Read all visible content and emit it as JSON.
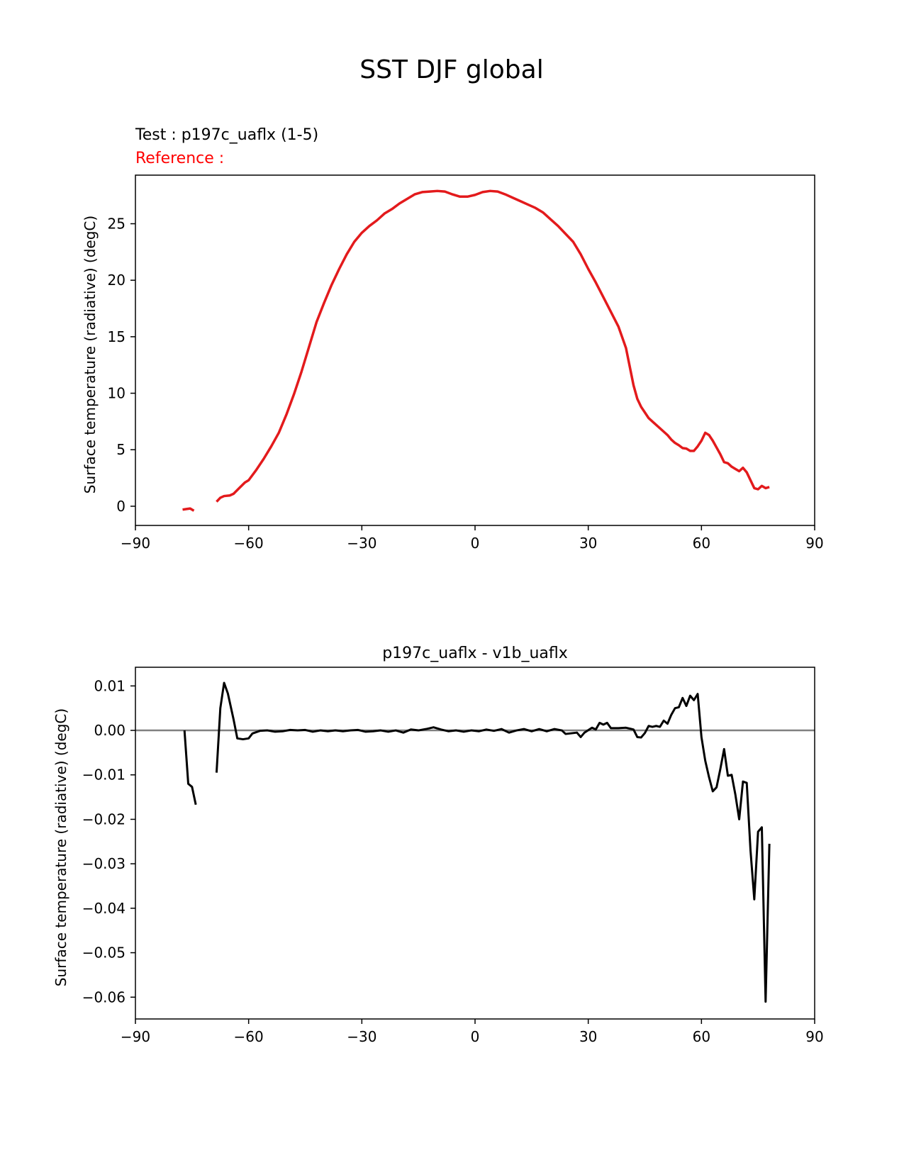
{
  "page": {
    "title": "SST DJF global"
  },
  "colors": {
    "test_line": "#e31a1c",
    "diff_line": "#000000",
    "zero_line": "#808080"
  },
  "chart_data": [
    {
      "type": "line",
      "test_label": "Test : p197c_uaflx (1-5)",
      "reference_label": "Reference :",
      "title": "",
      "xlabel": "",
      "ylabel": "Surface temperature (radiative) (degC)",
      "xlim": [
        -90,
        90
      ],
      "ylim": [
        -1.7,
        29.3
      ],
      "xticks": [
        -90,
        -60,
        -30,
        0,
        30,
        60,
        90
      ],
      "yticks": [
        0,
        5,
        10,
        15,
        20,
        25
      ],
      "series": [
        {
          "segments": [
            [
              [
                -77.5,
                -0.3
              ],
              [
                -76.5,
                -0.25
              ],
              [
                -75.5,
                -0.2
              ],
              [
                -74.5,
                -0.4
              ]
            ],
            [
              [
                -68.5,
                0.4
              ],
              [
                -67.5,
                0.75
              ],
              [
                -66.5,
                0.9
              ],
              [
                -65,
                0.95
              ],
              [
                -64,
                1.1
              ],
              [
                -62.5,
                1.6
              ],
              [
                -61,
                2.1
              ],
              [
                -60,
                2.3
              ],
              [
                -58,
                3.2
              ],
              [
                -56,
                4.2
              ],
              [
                -54,
                5.3
              ],
              [
                -52,
                6.5
              ],
              [
                -50,
                8.1
              ],
              [
                -48,
                9.9
              ],
              [
                -46,
                11.9
              ],
              [
                -44,
                14.1
              ],
              [
                -42,
                16.3
              ],
              [
                -40,
                18.0
              ],
              [
                -38,
                19.6
              ],
              [
                -36,
                21.0
              ],
              [
                -34,
                22.3
              ],
              [
                -32,
                23.4
              ],
              [
                -30,
                24.2
              ],
              [
                -28,
                24.8
              ],
              [
                -26,
                25.3
              ],
              [
                -24,
                25.9
              ],
              [
                -22,
                26.3
              ],
              [
                -20,
                26.8
              ],
              [
                -18,
                27.2
              ],
              [
                -16,
                27.6
              ],
              [
                -14,
                27.8
              ],
              [
                -12,
                27.85
              ],
              [
                -10,
                27.9
              ],
              [
                -8,
                27.85
              ],
              [
                -6,
                27.6
              ],
              [
                -4,
                27.4
              ],
              [
                -2,
                27.4
              ],
              [
                0,
                27.55
              ],
              [
                2,
                27.8
              ],
              [
                4,
                27.9
              ],
              [
                6,
                27.85
              ],
              [
                8,
                27.6
              ],
              [
                10,
                27.3
              ],
              [
                12,
                27.0
              ],
              [
                14,
                26.7
              ],
              [
                16,
                26.4
              ],
              [
                18,
                26.0
              ],
              [
                20,
                25.4
              ],
              [
                22,
                24.8
              ],
              [
                24,
                24.1
              ],
              [
                26,
                23.4
              ],
              [
                28,
                22.3
              ],
              [
                30,
                21.0
              ],
              [
                32,
                19.8
              ],
              [
                34,
                18.5
              ],
              [
                36,
                17.2
              ],
              [
                38,
                15.9
              ],
              [
                40,
                14.0
              ],
              [
                42,
                10.7
              ],
              [
                43,
                9.5
              ],
              [
                44,
                8.8
              ],
              [
                45,
                8.3
              ],
              [
                46,
                7.8
              ],
              [
                47,
                7.5
              ],
              [
                48,
                7.2
              ],
              [
                50,
                6.6
              ],
              [
                51,
                6.3
              ],
              [
                52,
                5.9
              ],
              [
                53,
                5.6
              ],
              [
                54,
                5.4
              ],
              [
                55,
                5.15
              ],
              [
                56,
                5.1
              ],
              [
                57,
                4.9
              ],
              [
                58,
                4.9
              ],
              [
                59,
                5.3
              ],
              [
                60,
                5.8
              ],
              [
                61,
                6.5
              ],
              [
                62,
                6.3
              ],
              [
                63,
                5.8
              ],
              [
                64,
                5.2
              ],
              [
                65,
                4.6
              ],
              [
                66,
                3.9
              ],
              [
                67,
                3.8
              ],
              [
                68,
                3.5
              ],
              [
                69,
                3.3
              ],
              [
                70,
                3.1
              ],
              [
                71,
                3.4
              ],
              [
                72,
                3.0
              ],
              [
                73,
                2.3
              ],
              [
                74,
                1.6
              ],
              [
                75,
                1.5
              ],
              [
                76,
                1.8
              ],
              [
                77,
                1.6
              ],
              [
                78,
                1.7
              ]
            ]
          ]
        }
      ]
    },
    {
      "type": "line",
      "title": "p197c_uaflx - v1b_uaflx",
      "xlabel": "",
      "ylabel": "Surface temperature (radiative) (degC)",
      "xlim": [
        -90,
        90
      ],
      "ylim": [
        -0.0649,
        0.0142
      ],
      "xticks": [
        -90,
        -60,
        -30,
        0,
        30,
        60,
        90
      ],
      "yticks": [
        0.01,
        0.0,
        -0.01,
        -0.02,
        -0.03,
        -0.04,
        -0.05,
        -0.06
      ],
      "ytick_labels": [
        "0.01",
        "0.00",
        "−0.01",
        "−0.02",
        "−0.03",
        "−0.04",
        "−0.05",
        "−0.06"
      ],
      "xtick_labels": [
        "−90",
        "−60",
        "−30",
        "0",
        "30",
        "60",
        "90"
      ],
      "series": [
        {
          "segments": [
            [
              [
                -77,
                0.0
              ],
              [
                -76,
                -0.012
              ],
              [
                -75,
                -0.0127
              ],
              [
                -74,
                -0.0167
              ]
            ],
            [
              [
                -68.5,
                -0.0095
              ],
              [
                -67.5,
                0.005
              ],
              [
                -66.5,
                0.0107
              ],
              [
                -65.5,
                0.0083
              ],
              [
                -64,
                0.0025
              ],
              [
                -63,
                -0.0018
              ],
              [
                -61.5,
                -0.002
              ],
              [
                -60,
                -0.0018
              ],
              [
                -59,
                -0.0007
              ],
              [
                -57,
                -0.0001
              ],
              [
                -55,
                0.0
              ],
              [
                -53,
                -0.0003
              ],
              [
                -51,
                -0.0002
              ],
              [
                -49,
                0.0001
              ],
              [
                -47,
                0.0
              ],
              [
                -45,
                0.0001
              ],
              [
                -43,
                -0.0003
              ],
              [
                -41,
                0.0
              ],
              [
                -39,
                -0.0002
              ],
              [
                -37,
                0.0
              ],
              [
                -35,
                -0.0002
              ],
              [
                -33,
                0.0
              ],
              [
                -31,
                0.0001
              ],
              [
                -29,
                -0.0003
              ],
              [
                -27,
                -0.0002
              ],
              [
                -25,
                0.0
              ],
              [
                -23,
                -0.0003
              ],
              [
                -21,
                0.0
              ],
              [
                -19,
                -0.0005
              ],
              [
                -17,
                0.0002
              ],
              [
                -15,
                0.0
              ],
              [
                -13,
                0.0003
              ],
              [
                -11,
                0.0007
              ],
              [
                -9,
                0.0002
              ],
              [
                -7,
                -0.0002
              ],
              [
                -5,
                0.0
              ],
              [
                -3,
                -0.0003
              ],
              [
                -1,
                0.0
              ],
              [
                1,
                -0.0002
              ],
              [
                3,
                0.0002
              ],
              [
                5,
                -0.0001
              ],
              [
                7,
                0.0003
              ],
              [
                9,
                -0.0005
              ],
              [
                11,
                0.0
              ],
              [
                13,
                0.0003
              ],
              [
                15,
                -0.0002
              ],
              [
                17,
                0.0003
              ],
              [
                19,
                -0.0002
              ],
              [
                21,
                0.0003
              ],
              [
                23,
                0.0
              ],
              [
                24,
                -0.0008
              ],
              [
                25,
                -0.0007
              ],
              [
                27,
                -0.0005
              ],
              [
                28,
                -0.0015
              ],
              [
                29,
                -0.0005
              ],
              [
                31,
                0.0006
              ],
              [
                32,
                0.0002
              ],
              [
                33,
                0.0017
              ],
              [
                34,
                0.0013
              ],
              [
                35,
                0.0017
              ],
              [
                36,
                0.0005
              ],
              [
                38,
                0.0005
              ],
              [
                40,
                0.0006
              ],
              [
                42,
                0.0002
              ],
              [
                43,
                -0.0015
              ],
              [
                44,
                -0.0016
              ],
              [
                45,
                -0.0006
              ],
              [
                46,
                0.001
              ],
              [
                47,
                0.0008
              ],
              [
                48,
                0.001
              ],
              [
                49,
                0.0008
              ],
              [
                50,
                0.0022
              ],
              [
                51,
                0.0015
              ],
              [
                52,
                0.0035
              ],
              [
                53,
                0.005
              ],
              [
                54,
                0.0052
              ],
              [
                55,
                0.0073
              ],
              [
                56,
                0.0055
              ],
              [
                57,
                0.0078
              ],
              [
                58,
                0.0068
              ],
              [
                59,
                0.0082
              ],
              [
                60,
                -0.0015
              ],
              [
                61,
                -0.0068
              ],
              [
                62,
                -0.0105
              ],
              [
                63,
                -0.0137
              ],
              [
                64,
                -0.0128
              ],
              [
                65,
                -0.0087
              ],
              [
                66,
                -0.0042
              ],
              [
                67,
                -0.0102
              ],
              [
                68,
                -0.01
              ],
              [
                69,
                -0.0145
              ],
              [
                70,
                -0.02
              ],
              [
                71,
                -0.0115
              ],
              [
                72,
                -0.0118
              ],
              [
                73,
                -0.027
              ],
              [
                74,
                -0.038
              ],
              [
                75,
                -0.0228
              ],
              [
                76,
                -0.0218
              ],
              [
                77,
                -0.061
              ],
              [
                78,
                -0.0255
              ]
            ]
          ]
        }
      ]
    }
  ]
}
